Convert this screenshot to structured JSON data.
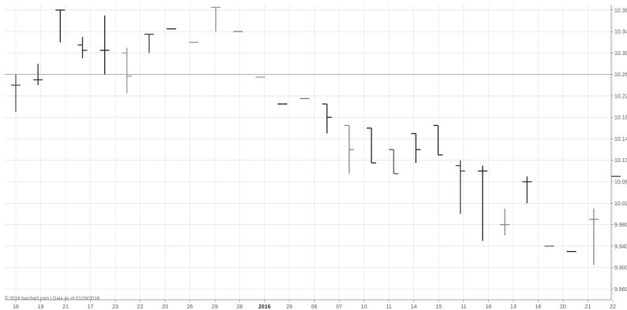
{
  "chart_data": {
    "type": "ohlc",
    "grid": true,
    "y_axis_side": "right",
    "ylim": [
      9.84,
      10.39
    ],
    "yticks": [
      {
        "value": 10.38,
        "label": "10.380"
      },
      {
        "value": 10.34,
        "label": "10.340"
      },
      {
        "value": 10.3,
        "label": "10.300"
      },
      {
        "value": 10.26,
        "label": "10.260"
      },
      {
        "value": 10.22,
        "label": "10.220"
      },
      {
        "value": 10.18,
        "label": "10.180"
      },
      {
        "value": 10.14,
        "label": "10.140"
      },
      {
        "value": 10.1,
        "label": "10.100"
      },
      {
        "value": 10.06,
        "label": "10.060"
      },
      {
        "value": 10.02,
        "label": "10.020"
      },
      {
        "value": 9.98,
        "label": "9.980"
      },
      {
        "value": 9.94,
        "label": "9.940"
      },
      {
        "value": 9.9,
        "label": "9.900"
      },
      {
        "value": 9.86,
        "label": "9.860"
      }
    ],
    "reference_line": 10.26,
    "x_labels": [
      "16",
      "19",
      "21",
      "17",
      "23",
      "22",
      "20",
      "26",
      "29",
      "28",
      "2016",
      "26",
      "06",
      "07",
      "10",
      "11",
      "14",
      "15",
      "11",
      "16",
      "13",
      "16",
      "20",
      "21",
      "22"
    ],
    "x_label_bold_index": 10,
    "bars": [
      {
        "open": 10.24,
        "high": 10.26,
        "low": 10.19,
        "close": 10.24,
        "color": "#555555"
      },
      {
        "open": 10.25,
        "high": 10.28,
        "low": 10.24,
        "close": 10.25,
        "color": "#333333"
      },
      {
        "open": 10.38,
        "high": 10.38,
        "low": 10.32,
        "close": 10.38,
        "color": "#222222"
      },
      {
        "open": 10.315,
        "high": 10.33,
        "low": 10.29,
        "close": 10.305,
        "color": "#333333"
      },
      {
        "open": 10.305,
        "high": 10.37,
        "low": 10.26,
        "close": 10.305,
        "color": "#222222"
      },
      {
        "open": 10.3,
        "high": 10.31,
        "low": 10.225,
        "close": 10.257,
        "color": "#999999"
      },
      {
        "open": 10.335,
        "high": 10.335,
        "low": 10.3,
        "close": 10.335,
        "color": "#444444"
      },
      {
        "open": 10.345,
        "high": 10.345,
        "low": 10.345,
        "close": 10.345,
        "color": "#222222"
      },
      {
        "open": 10.32,
        "high": 10.32,
        "low": 10.32,
        "close": 10.32,
        "color": "#999999"
      },
      {
        "open": 10.385,
        "high": 10.385,
        "low": 10.34,
        "close": 10.385,
        "color": "#999999"
      },
      {
        "open": 10.34,
        "high": 10.34,
        "low": 10.34,
        "close": 10.34,
        "color": "#777777"
      },
      {
        "open": 10.255,
        "high": 10.255,
        "low": 10.255,
        "close": 10.255,
        "color": "#999999"
      },
      {
        "open": 10.205,
        "high": 10.205,
        "low": 10.205,
        "close": 10.205,
        "color": "#111111"
      },
      {
        "open": 10.215,
        "high": 10.215,
        "low": 10.215,
        "close": 10.215,
        "color": "#777777"
      },
      {
        "open": 10.205,
        "high": 10.205,
        "low": 10.15,
        "close": 10.18,
        "color": "#222222"
      },
      {
        "open": 10.165,
        "high": 10.165,
        "low": 10.075,
        "close": 10.12,
        "color": "#888888"
      },
      {
        "open": 10.16,
        "high": 10.16,
        "low": 10.095,
        "close": 10.095,
        "color": "#222222"
      },
      {
        "open": 10.12,
        "high": 10.12,
        "low": 10.075,
        "close": 10.075,
        "color": "#555555"
      },
      {
        "open": 10.15,
        "high": 10.15,
        "low": 10.095,
        "close": 10.12,
        "color": "#222222"
      },
      {
        "open": 10.165,
        "high": 10.165,
        "low": 10.11,
        "close": 10.11,
        "color": "#222222"
      },
      {
        "open": 10.09,
        "high": 10.1,
        "low": 10.0,
        "close": 10.08,
        "color": "#444444"
      },
      {
        "open": 10.08,
        "high": 10.09,
        "low": 9.95,
        "close": 10.08,
        "color": "#222222"
      },
      {
        "open": 9.98,
        "high": 10.01,
        "low": 9.96,
        "close": 9.98,
        "color": "#888888"
      },
      {
        "open": 10.06,
        "high": 10.07,
        "low": 10.02,
        "close": 10.06,
        "color": "#333333"
      },
      {
        "open": 9.94,
        "high": 9.94,
        "low": 9.94,
        "close": 9.94,
        "color": "#666666"
      },
      {
        "open": 9.93,
        "high": 9.93,
        "low": 9.93,
        "close": 9.93,
        "color": "#222222"
      },
      {
        "open": 9.99,
        "high": 10.01,
        "low": 9.905,
        "close": 9.99,
        "color": "#888888"
      },
      {
        "open": 10.07,
        "high": 10.07,
        "low": 10.07,
        "close": 10.07,
        "color": "#444444"
      }
    ]
  },
  "watermark": "© 2016 barchart.com | Data as of 01/26/2016"
}
